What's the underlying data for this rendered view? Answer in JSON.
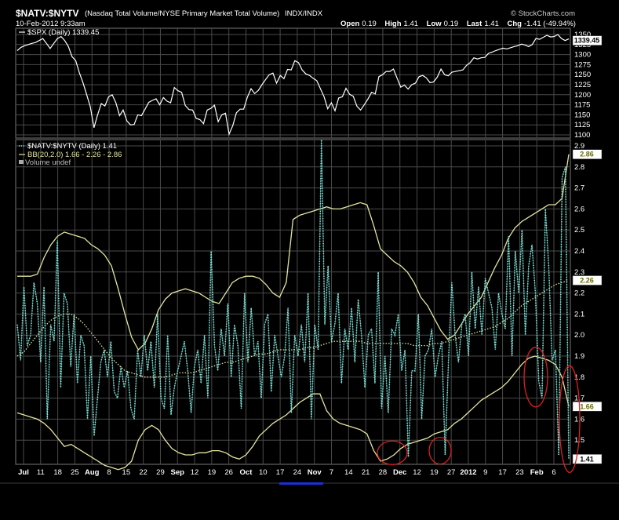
{
  "header": {
    "symbol": "$NATV:$NYTV",
    "description": "(Nasdaq Total Volume/NYSE Primary Market Total Volume)",
    "exchange": "INDX/INDX",
    "brand": "© StockCharts.com",
    "timestamp": "10-Feb-2012 9:33am",
    "ohlc": {
      "open_label": "Open",
      "open": "0.19",
      "high_label": "High",
      "high": "1.41",
      "low_label": "Low",
      "low": "0.19",
      "last_label": "Last",
      "last": "1.41",
      "chg_label": "Chg",
      "chg": "-1.41 (-49.94%)"
    }
  },
  "colors": {
    "background": "#000000",
    "grid": "#4a4a4a",
    "spx_line": "#ffffff",
    "ratio_dots": "#8fe7e0",
    "ratio_line": "#46b4a8",
    "bollinger": "#e4e4a0",
    "annotation": "#e02020"
  },
  "chart_data": [
    {
      "type": "line",
      "panel": "top",
      "legend": "$SPX (Daily) 1339.45",
      "last_value": "1339.45",
      "ylim": [
        1100,
        1350
      ],
      "y_ticks": [
        "1350",
        "1325",
        "1300",
        "1275",
        "1250",
        "1225",
        "1200",
        "1175",
        "1150",
        "1125",
        "1100"
      ],
      "series": [
        {
          "name": "$SPX",
          "values": [
            1310,
            1318,
            1322,
            1325,
            1328,
            1330,
            1335,
            1340,
            1328,
            1315,
            1328,
            1340,
            1345,
            1335,
            1320,
            1295,
            1285,
            1255,
            1230,
            1200,
            1170,
            1118,
            1150,
            1178,
            1172,
            1195,
            1200,
            1180,
            1148,
            1162,
            1135,
            1125,
            1126,
            1150,
            1148,
            1164,
            1181,
            1186,
            1190,
            1175,
            1193,
            1184,
            1180,
            1218,
            1210,
            1206,
            1173,
            1163,
            1162,
            1141,
            1138,
            1128,
            1162,
            1166,
            1174,
            1133,
            1150,
            1154,
            1102,
            1123,
            1155,
            1164,
            1164,
            1194,
            1215,
            1203,
            1211,
            1225,
            1238,
            1250,
            1254,
            1229,
            1248,
            1240,
            1263,
            1262,
            1285,
            1280,
            1262,
            1252,
            1248,
            1241,
            1235,
            1215,
            1195,
            1165,
            1180,
            1160,
            1192,
            1195,
            1216,
            1201,
            1196,
            1171,
            1162,
            1175,
            1189,
            1206,
            1202,
            1245,
            1250,
            1258,
            1258,
            1264,
            1241,
            1219,
            1224,
            1214,
            1225,
            1229,
            1245,
            1248,
            1242,
            1230,
            1232,
            1244,
            1264,
            1250,
            1247,
            1256,
            1258,
            1260,
            1262,
            1273,
            1280,
            1292,
            1289,
            1292,
            1293,
            1303,
            1306,
            1310,
            1313,
            1316,
            1314,
            1317,
            1320,
            1322,
            1326,
            1324,
            1320,
            1325,
            1340,
            1338,
            1343,
            1348,
            1344,
            1345,
            1350,
            1340,
            1335,
            1339
          ]
        }
      ]
    },
    {
      "type": "line",
      "panel": "bottom",
      "legend": "$NATV:$NYTV (Daily) 1.41",
      "legend2": "BB(20,2.0) 1.66 - 2.26 - 2.86",
      "legend3": "Volume undef",
      "ylim": [
        1.4,
        2.9
      ],
      "y_ticks": [
        "2.9",
        "2.8",
        "2.7",
        "2.6",
        "2.5",
        "2.4",
        "2.3",
        "2.2",
        "2.1",
        "2.0",
        "1.9",
        "1.8",
        "1.7",
        "1.6",
        "1.5"
      ],
      "last_labels": {
        "upper": "2.86",
        "middle": "2.26",
        "lower": "1.66",
        "last": "1.41"
      },
      "series": [
        {
          "name": "$NATV:$NYTV",
          "values": [
            2.05,
            1.88,
            2.23,
            1.95,
            2.0,
            2.25,
            2.15,
            1.87,
            2.23,
            1.6,
            2.05,
            1.97,
            2.45,
            1.75,
            2.2,
            2.15,
            1.85,
            2.1,
            1.77,
            2.0,
            1.95,
            1.6,
            1.9,
            1.52,
            1.7,
            1.87,
            1.93,
            1.8,
            1.97,
            1.73,
            1.7,
            1.85,
            1.75,
            1.83,
            1.65,
            1.6,
            1.93,
            1.8,
            2.0,
            1.83,
            1.97,
            1.75,
            2.1,
            1.7,
            1.65,
            2.0,
            1.62,
            1.75,
            1.83,
            1.9,
            1.97,
            1.83,
            1.63,
            1.85,
            1.93,
            1.77,
            2.0,
            1.7,
            2.4,
            1.95,
            1.83,
            2.03,
            1.9,
            2.15,
            1.8,
            2.05,
            1.95,
            1.65,
            2.2,
            1.87,
            2.13,
            1.9,
            1.97,
            1.7,
            2.05,
            2.1,
            1.73,
            2.0,
            1.9,
            1.8,
            1.9,
            2.13,
            1.63,
            2.0,
            1.9,
            2.05,
            1.87,
            2.2,
            1.6,
            2.05,
            1.93,
            2.93,
            2.05,
            2.33,
            1.97,
            2.05,
            2.2,
            1.77,
            2.03,
            1.93,
            2.13,
            1.87,
            2.17,
            2.0,
            1.75,
            2.0,
            2.03,
            1.77,
            2.3,
            1.65,
            1.9,
            1.63,
            2.03,
            2.0,
            2.1,
            1.83,
            1.93,
            1.42,
            1.83,
            1.83,
            2.1,
            1.6,
            1.9,
            1.93,
            2.03,
            1.8,
            1.9,
            1.97,
            1.43,
            1.87,
            2.25,
            2.0,
            1.87,
            2.05,
            2.1,
            1.9,
            2.3,
            2.03,
            2.23,
            2.0,
            2.27,
            2.2,
            2.13,
            1.93,
            2.2,
            2.1,
            2.03,
            2.47,
            1.9,
            2.4,
            2.2,
            2.5,
            2.0,
            2.33,
            2.43,
            2.2,
            1.78,
            1.7,
            2.6,
            2.33,
            1.88,
            1.93,
            1.43,
            2.75,
            2.8,
            1.41
          ]
        },
        {
          "name": "BB middle",
          "values": [
            1.9,
            1.92,
            1.96,
            2.0,
            2.04,
            2.07,
            2.09,
            2.1,
            2.1,
            2.08,
            2.05,
            2.01,
            1.97,
            1.93,
            1.89,
            1.86,
            1.83,
            1.82,
            1.81,
            1.8,
            1.8,
            1.8,
            1.8,
            1.81,
            1.82,
            1.82,
            1.82,
            1.83,
            1.84,
            1.85,
            1.86,
            1.87,
            1.87,
            1.88,
            1.89,
            1.9,
            1.91,
            1.91,
            1.92,
            1.93,
            1.93,
            1.93,
            1.93,
            1.94,
            1.94,
            1.95,
            1.96,
            1.97,
            1.97,
            1.97,
            1.97,
            1.97,
            1.96,
            1.96,
            1.96,
            1.96,
            1.96,
            1.96,
            1.96,
            1.95,
            1.95,
            1.95,
            1.96,
            1.96,
            1.97,
            1.98,
            1.99,
            2.0,
            2.01,
            2.02,
            2.03,
            2.04,
            2.06,
            2.08,
            2.11,
            2.14,
            2.16,
            2.18,
            2.2,
            2.22,
            2.24,
            2.25,
            2.26
          ]
        },
        {
          "name": "BB upper",
          "values": [
            2.28,
            2.28,
            2.28,
            2.29,
            2.37,
            2.43,
            2.47,
            2.49,
            2.48,
            2.47,
            2.46,
            2.43,
            2.41,
            2.38,
            2.33,
            2.22,
            2.1,
            1.99,
            1.93,
            1.96,
            2.03,
            2.12,
            2.17,
            2.2,
            2.21,
            2.22,
            2.21,
            2.2,
            2.18,
            2.16,
            2.15,
            2.2,
            2.25,
            2.27,
            2.28,
            2.28,
            2.27,
            2.24,
            2.2,
            2.18,
            2.25,
            2.55,
            2.57,
            2.58,
            2.59,
            2.6,
            2.61,
            2.6,
            2.6,
            2.61,
            2.62,
            2.63,
            2.62,
            2.52,
            2.41,
            2.38,
            2.35,
            2.33,
            2.3,
            2.25,
            2.18,
            2.14,
            2.08,
            2.02,
            1.98,
            2.0,
            2.05,
            2.1,
            2.14,
            2.18,
            2.25,
            2.32,
            2.38,
            2.46,
            2.51,
            2.54,
            2.56,
            2.58,
            2.6,
            2.62,
            2.62,
            2.65,
            2.86
          ]
        },
        {
          "name": "BB lower",
          "values": [
            1.63,
            1.62,
            1.61,
            1.6,
            1.58,
            1.55,
            1.51,
            1.47,
            1.48,
            1.46,
            1.44,
            1.42,
            1.4,
            1.38,
            1.37,
            1.36,
            1.37,
            1.4,
            1.5,
            1.55,
            1.57,
            1.55,
            1.5,
            1.46,
            1.44,
            1.43,
            1.43,
            1.44,
            1.44,
            1.45,
            1.45,
            1.44,
            1.42,
            1.41,
            1.43,
            1.47,
            1.52,
            1.55,
            1.58,
            1.6,
            1.62,
            1.65,
            1.68,
            1.7,
            1.72,
            1.72,
            1.64,
            1.6,
            1.58,
            1.57,
            1.56,
            1.55,
            1.53,
            1.45,
            1.4,
            1.41,
            1.43,
            1.46,
            1.48,
            1.49,
            1.5,
            1.51,
            1.53,
            1.54,
            1.55,
            1.58,
            1.6,
            1.63,
            1.66,
            1.69,
            1.71,
            1.73,
            1.75,
            1.78,
            1.82,
            1.86,
            1.89,
            1.9,
            1.89,
            1.88,
            1.86,
            1.8,
            1.66
          ]
        }
      ]
    }
  ],
  "x_axis": {
    "labels": [
      {
        "text": "Jul",
        "bold": true
      },
      {
        "text": "11",
        "bold": false
      },
      {
        "text": "18",
        "bold": false
      },
      {
        "text": "25",
        "bold": false
      },
      {
        "text": "Aug",
        "bold": true
      },
      {
        "text": "8",
        "bold": false
      },
      {
        "text": "15",
        "bold": false
      },
      {
        "text": "22",
        "bold": false
      },
      {
        "text": "29",
        "bold": false
      },
      {
        "text": "Sep",
        "bold": true
      },
      {
        "text": "12",
        "bold": false
      },
      {
        "text": "19",
        "bold": false
      },
      {
        "text": "26",
        "bold": false
      },
      {
        "text": "Oct",
        "bold": true
      },
      {
        "text": "10",
        "bold": false
      },
      {
        "text": "17",
        "bold": false
      },
      {
        "text": "24",
        "bold": false
      },
      {
        "text": "Nov",
        "bold": true
      },
      {
        "text": "7",
        "bold": false
      },
      {
        "text": "14",
        "bold": false
      },
      {
        "text": "21",
        "bold": false
      },
      {
        "text": "28",
        "bold": false
      },
      {
        "text": "Dec",
        "bold": true
      },
      {
        "text": "12",
        "bold": false
      },
      {
        "text": "19",
        "bold": false
      },
      {
        "text": "27",
        "bold": false
      },
      {
        "text": "2012",
        "bold": true
      },
      {
        "text": "9",
        "bold": false
      },
      {
        "text": "17",
        "bold": false
      },
      {
        "text": "23",
        "bold": false
      },
      {
        "text": "Feb",
        "bold": true
      },
      {
        "text": "6",
        "bold": false
      }
    ]
  },
  "annotations": [
    {
      "shape": "ellipse",
      "target": "late-November low"
    },
    {
      "shape": "ellipse",
      "target": "mid-December low"
    },
    {
      "shape": "ellipse",
      "target": "late-January dip"
    },
    {
      "shape": "ellipse",
      "target": "February drop"
    }
  ]
}
